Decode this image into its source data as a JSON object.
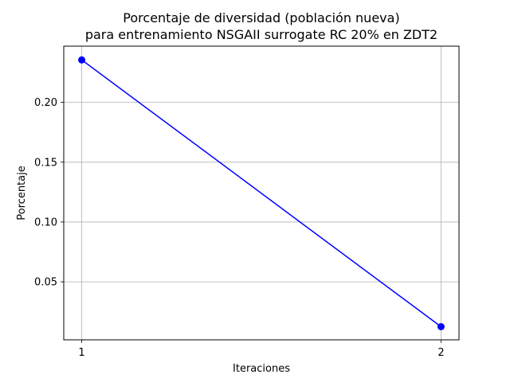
{
  "chart_data": {
    "type": "line",
    "title_line1": "Porcentaje de diversidad (población nueva)",
    "title_line2": "para entrenamiento NSGAII surrogate RC 20% en ZDT2",
    "xlabel": "Iteraciones",
    "ylabel": "Porcentaje",
    "x_ticks": [
      "1",
      "2"
    ],
    "y_ticks": [
      "0.05",
      "0.10",
      "0.15",
      "0.20"
    ],
    "xlim": [
      0.95,
      2.05
    ],
    "ylim": [
      0.0015,
      0.247
    ],
    "grid": true,
    "series": [
      {
        "color": "#0000ff",
        "marker": "circle",
        "x": [
          1,
          2
        ],
        "y": [
          0.2355,
          0.0125
        ]
      }
    ]
  }
}
